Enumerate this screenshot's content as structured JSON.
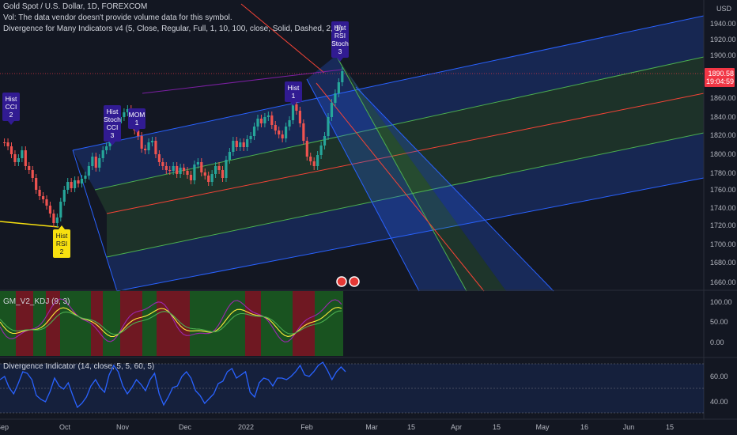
{
  "legend": {
    "title": "Gold Spot / U.S. Dollar, 1D, FOREXCOM",
    "vol": "Vol: The data vendor doesn't provide volume data for this symbol.",
    "divergence": "Divergence for Many Indicators v4 (5, Close, Regular, Full, 1, 10, 100, close, Solid, Dashed, 2, 1)"
  },
  "currency": "USD",
  "price_scale": [
    "1940.00",
    "1920.00",
    "1900.00",
    "1880.00",
    "1860.00",
    "1840.00",
    "1820.00",
    "1800.00",
    "1780.00",
    "1760.00",
    "1740.00",
    "1720.00",
    "1700.00",
    "1680.00",
    "1660.00"
  ],
  "last_price": "1890.58",
  "countdown": "19:04:59",
  "time_axis": [
    "Sep",
    "Oct",
    "Nov",
    "Dec",
    "2022",
    "Feb",
    "Mar",
    "15",
    "Apr",
    "15",
    "May",
    "16",
    "Jun",
    "15"
  ],
  "signals": [
    {
      "lines": [
        "Hist",
        "CCI",
        "2"
      ],
      "color": "#311b92",
      "text": "#ffffff"
    },
    {
      "lines": [
        "Hist",
        "Stoch",
        "CCI",
        "3"
      ],
      "color": "#311b92",
      "text": "#ffffff"
    },
    {
      "lines": [
        "MOM",
        "1"
      ],
      "color": "#311b92",
      "text": "#ffffff"
    },
    {
      "lines": [
        "Hist",
        "1"
      ],
      "color": "#311b92",
      "text": "#ffffff"
    },
    {
      "lines": [
        "Hist",
        "RSI",
        "Stoch",
        "3"
      ],
      "color": "#311b92",
      "text": "#ffffff"
    },
    {
      "lines": [
        "Hist",
        "RSI",
        "2"
      ],
      "color": "#f7e00f",
      "text": "#131722"
    }
  ],
  "kdj": {
    "label": "GM_V2_KDJ (9, 3)",
    "scale": [
      "100.00",
      "50.00",
      "0.00"
    ]
  },
  "divind": {
    "label": "Divergence Indicator (14, close, 5, 5, 60, 5)",
    "scale": [
      "60.00",
      "40.00"
    ]
  },
  "colors": {
    "bg": "#131722",
    "up": "#26a69a",
    "down": "#ef5350",
    "fork_blue": "#2962ff",
    "fork_green": "#4caf50",
    "median": "#f44336",
    "price_tag": "#f23645"
  }
}
